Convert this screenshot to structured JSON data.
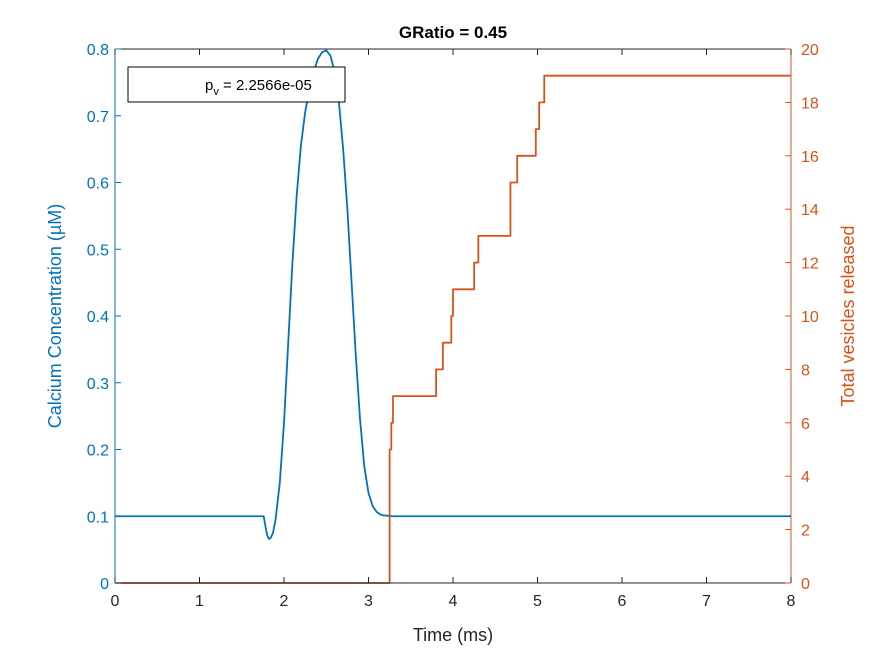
{
  "chart_data": {
    "type": "line",
    "title": "GRatio = 0.45",
    "xlabel": "Time (ms)",
    "ylabel_left": "Calcium Concentration (µM)",
    "ylabel_right": "Total vesicles released",
    "xlim": [
      0,
      8
    ],
    "ylim_left": [
      0,
      0.8
    ],
    "ylim_right": [
      0,
      20
    ],
    "x_ticks": [
      "0",
      "1",
      "2",
      "3",
      "4",
      "5",
      "6",
      "7",
      "8"
    ],
    "y_left_ticks": [
      "0",
      "0.1",
      "0.2",
      "0.3",
      "0.4",
      "0.5",
      "0.6",
      "0.7",
      "0.8"
    ],
    "y_right_ticks": [
      "0",
      "2",
      "4",
      "6",
      "8",
      "10",
      "12",
      "14",
      "16",
      "18",
      "20"
    ],
    "grid": false,
    "annotation": {
      "prefix": "p",
      "subscript": "v",
      "text": " = 2.2566e-05"
    },
    "colors": {
      "calcium": "#0072BD",
      "vesicles": "#D95319"
    },
    "series": [
      {
        "axis": "left",
        "style": "line",
        "x": [
          0,
          1.76,
          1.78,
          1.8,
          1.82,
          1.84,
          1.87,
          1.9,
          1.95,
          2.0,
          2.05,
          2.1,
          2.15,
          2.2,
          2.25,
          2.3,
          2.35,
          2.4,
          2.45,
          2.5,
          2.55,
          2.6,
          2.65,
          2.7,
          2.75,
          2.8,
          2.85,
          2.9,
          2.95,
          3.0,
          3.05,
          3.1,
          3.15,
          3.2,
          3.3,
          3.4,
          8.0
        ],
        "values": [
          0.1,
          0.1,
          0.085,
          0.072,
          0.066,
          0.067,
          0.075,
          0.095,
          0.15,
          0.24,
          0.36,
          0.48,
          0.58,
          0.655,
          0.705,
          0.74,
          0.765,
          0.785,
          0.795,
          0.798,
          0.79,
          0.765,
          0.72,
          0.65,
          0.56,
          0.45,
          0.34,
          0.245,
          0.175,
          0.135,
          0.115,
          0.106,
          0.102,
          0.101,
          0.1,
          0.1,
          0.1
        ]
      },
      {
        "axis": "right",
        "style": "step",
        "x": [
          0,
          3.25,
          3.27,
          3.29,
          3.31,
          3.8,
          3.88,
          3.98,
          4.0,
          4.02,
          4.25,
          4.3,
          4.34,
          4.68,
          4.72,
          4.76,
          4.98,
          5.02,
          5.08,
          5.14,
          8.0
        ],
        "values": [
          0,
          5,
          6,
          7,
          7,
          8,
          9,
          10,
          11,
          11,
          12,
          13,
          13,
          15,
          15,
          16,
          17,
          18,
          19,
          19,
          19
        ]
      }
    ]
  }
}
